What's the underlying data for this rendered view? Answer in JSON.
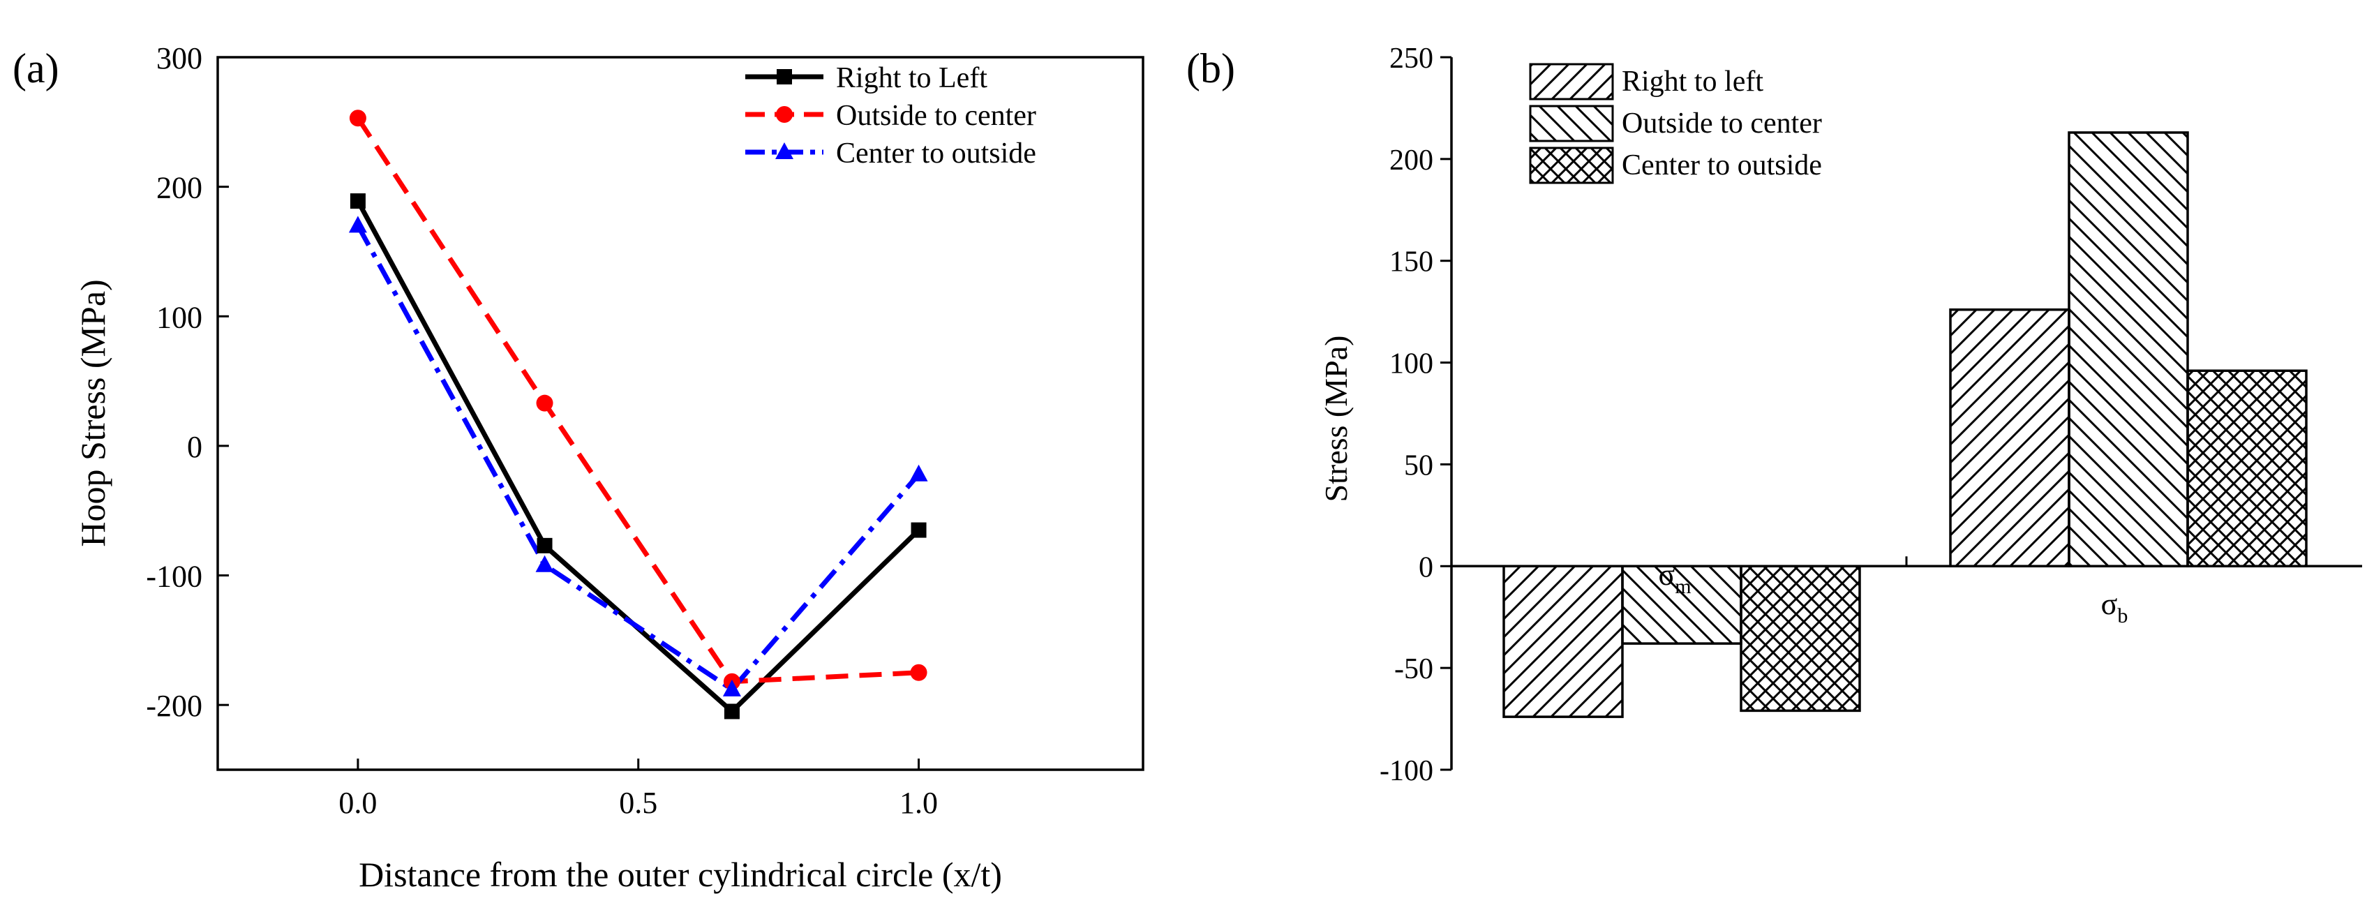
{
  "chart_data": [
    {
      "panel_label": "(a)",
      "type": "line",
      "title": "",
      "xlabel": "Distance from the outer cylindrical circle (x/t)",
      "ylabel": "Hoop Stress (MPa)",
      "xlim": [
        -0.25,
        1.4
      ],
      "ylim": [
        -250,
        300
      ],
      "xticks": [
        0.0,
        0.5,
        1.0
      ],
      "xtick_labels": [
        "0.0",
        "0.5",
        "1.0"
      ],
      "yticks": [
        -200,
        -100,
        0,
        100,
        200,
        300
      ],
      "ytick_labels": [
        "-200",
        "-100",
        "0",
        "100",
        "200",
        "300"
      ],
      "grid": false,
      "legend_position": "top-right",
      "series": [
        {
          "name": "Right to Left",
          "color": "#000000",
          "dash": "solid",
          "marker": "square",
          "x": [
            0.0,
            0.333,
            0.667,
            1.0
          ],
          "y": [
            189,
            -77,
            -205,
            -65
          ]
        },
        {
          "name": "Outside to center",
          "color": "#ff0000",
          "dash": "dashed",
          "marker": "circle",
          "x": [
            0.0,
            0.333,
            0.667,
            1.0
          ],
          "y": [
            253,
            33,
            -182,
            -175
          ]
        },
        {
          "name": "Center to outside",
          "color": "#0000ff",
          "dash": "dashdot",
          "marker": "triangle",
          "x": [
            0.0,
            0.333,
            0.667,
            1.0
          ],
          "y": [
            170,
            -92,
            -188,
            -22
          ]
        }
      ]
    },
    {
      "panel_label": "(b)",
      "type": "bar",
      "title": "",
      "xlabel": "",
      "ylabel": "Stress (MPa)",
      "ylim": [
        -100,
        250
      ],
      "yticks": [
        -100,
        -50,
        0,
        50,
        100,
        150,
        200,
        250
      ],
      "ytick_labels": [
        "-100",
        "-50",
        "0",
        "50",
        "100",
        "150",
        "200",
        "250"
      ],
      "grid": false,
      "legend_position": "top-left",
      "categories": [
        {
          "main": "σ",
          "sub": "m"
        },
        {
          "main": "σ",
          "sub": "b"
        }
      ],
      "series": [
        {
          "name": "Right to left",
          "pattern": "diagonal-up",
          "values": [
            -74,
            126
          ]
        },
        {
          "name": "Outside to center",
          "pattern": "diagonal-down",
          "values": [
            -38,
            213
          ]
        },
        {
          "name": "Center to outside",
          "pattern": "crosshatch",
          "values": [
            -71,
            96
          ]
        }
      ]
    }
  ]
}
